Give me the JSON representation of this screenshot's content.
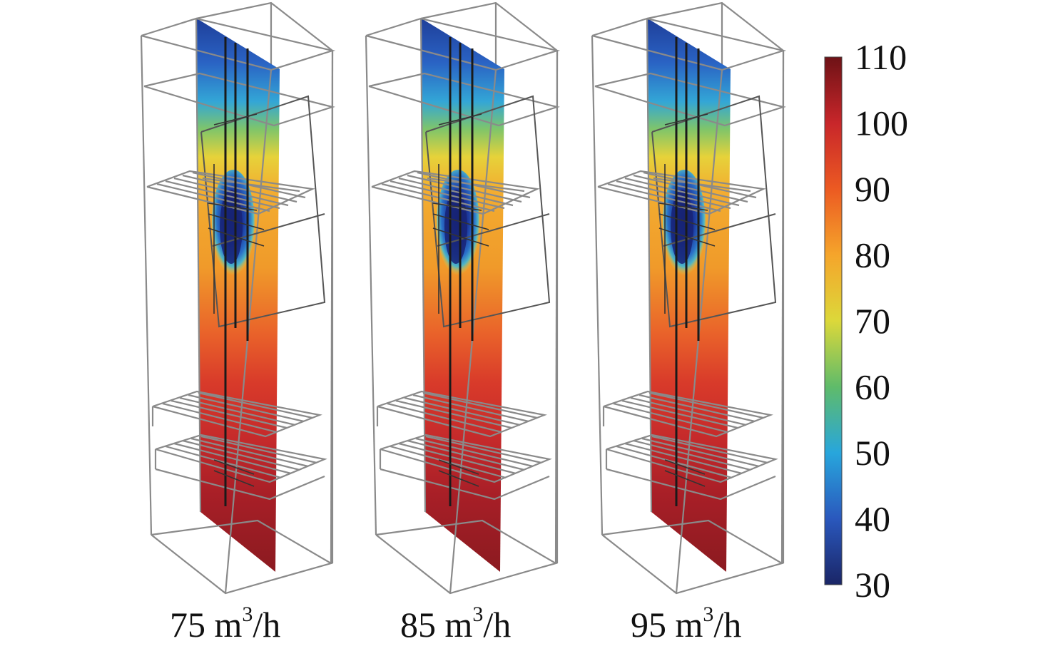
{
  "figure": {
    "panels": [
      {
        "label_main": "75 m",
        "label_sup": "3",
        "label_tail": "/h"
      },
      {
        "label_main": "85 m",
        "label_sup": "3",
        "label_tail": "/h"
      },
      {
        "label_main": "95 m",
        "label_sup": "3",
        "label_tail": "/h"
      }
    ],
    "colorbar": {
      "min": 30,
      "max": 110,
      "ticks": [
        "110",
        "100",
        "90",
        "80",
        "70",
        "60",
        "50",
        "40",
        "30"
      ],
      "colors": [
        "#7a1216",
        "#c8262a",
        "#e8551f",
        "#f2a32a",
        "#d8d436",
        "#62b864",
        "#2aa7d6",
        "#2b5fbf",
        "#1b2a6e"
      ]
    }
  }
}
